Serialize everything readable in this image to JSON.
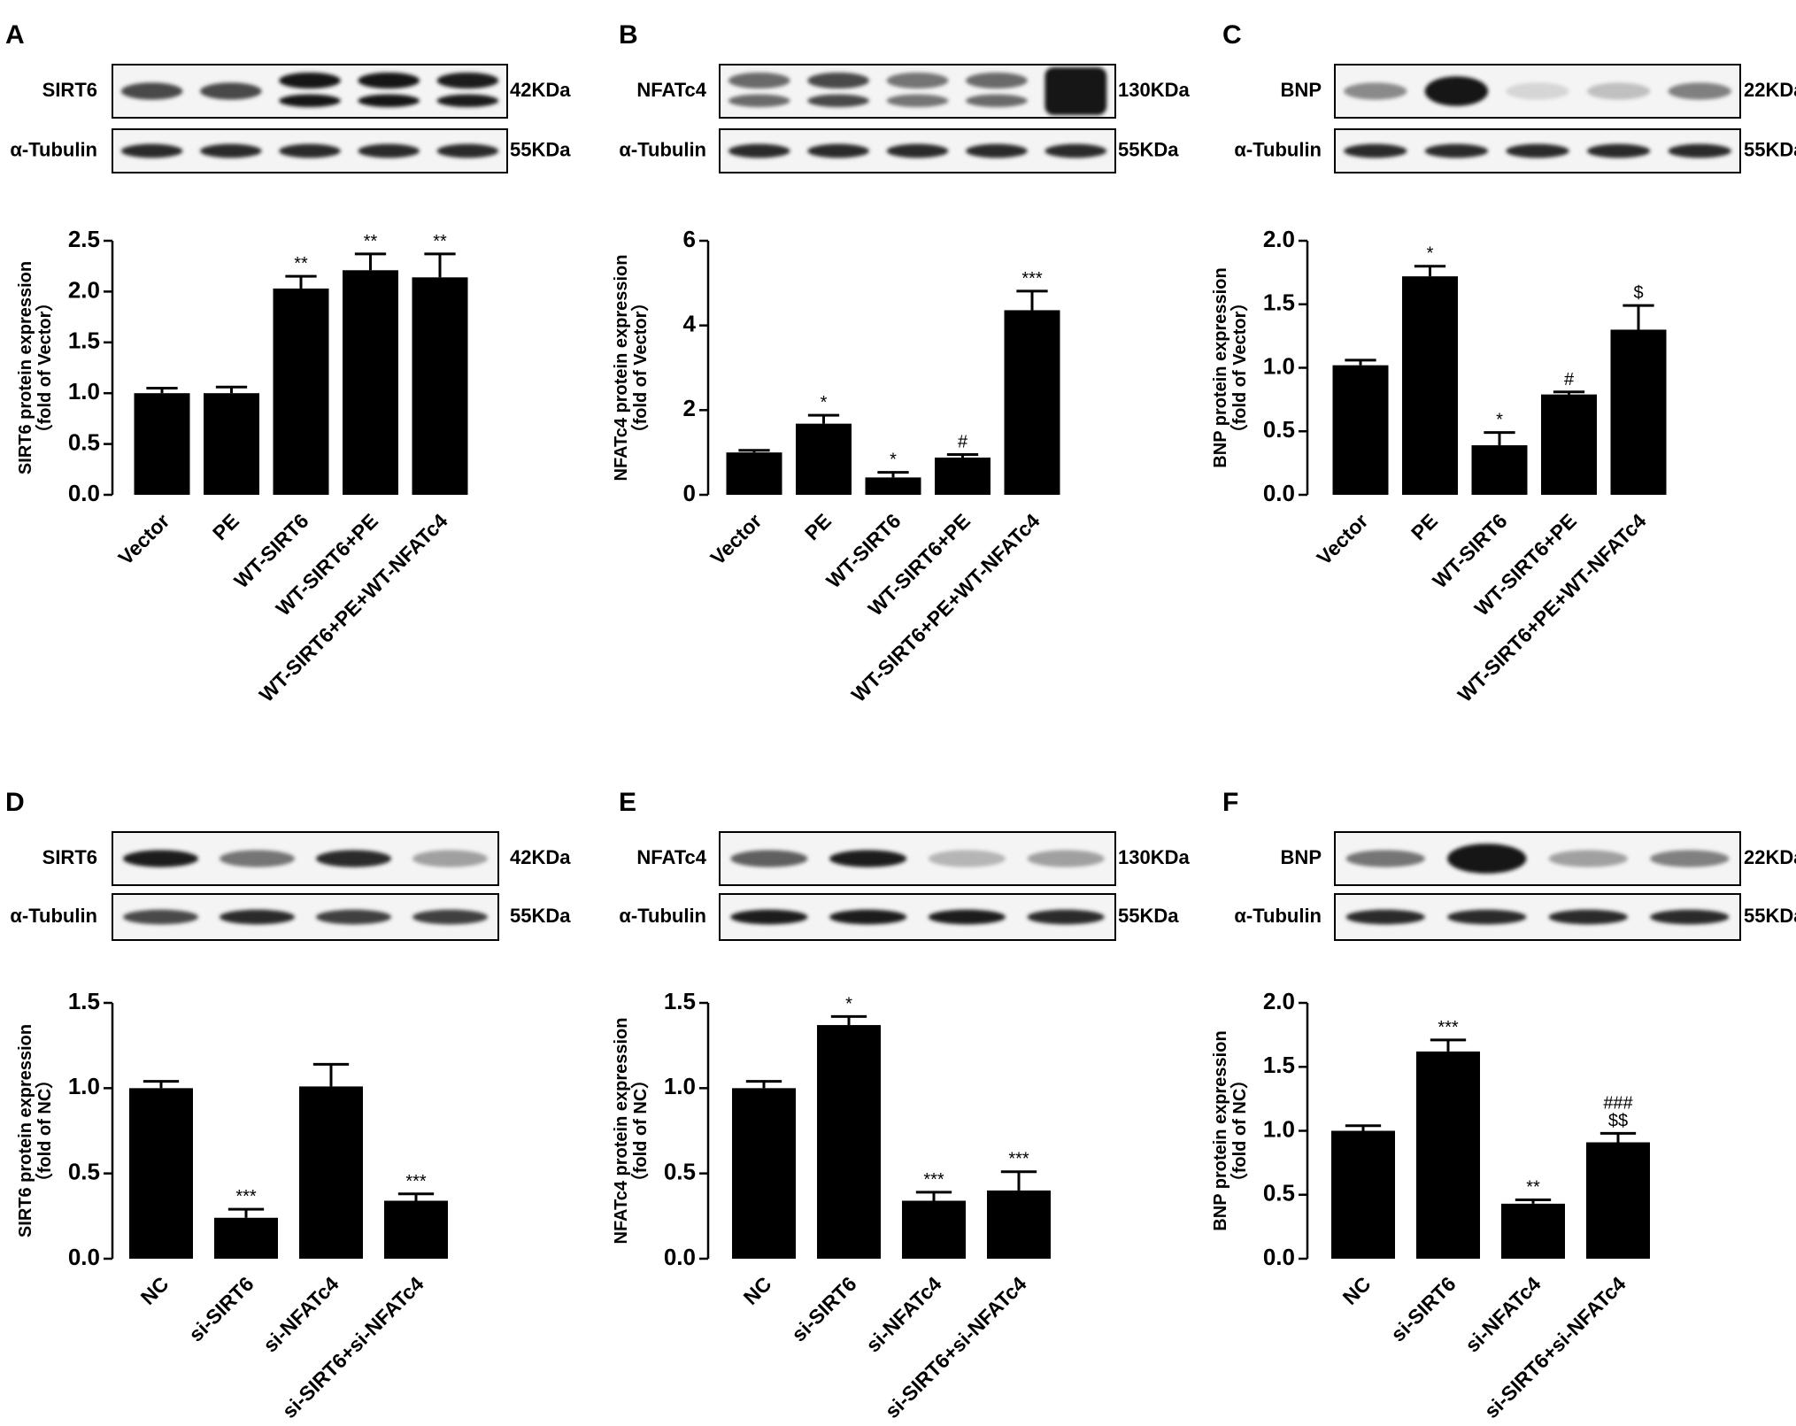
{
  "chart_data": [
    {
      "panel": "A",
      "type": "bar",
      "blot": {
        "target": "SIRT6",
        "target_kda": "42KDa",
        "control": "α-Tubulin",
        "control_kda": "55KDa",
        "target_bands": [
          0.75,
          0.75,
          1.0,
          1.0,
          0.95
        ],
        "target_doublet": [
          false,
          false,
          true,
          true,
          true
        ],
        "control_bands": [
          0.9,
          0.9,
          0.9,
          0.9,
          0.9
        ]
      },
      "categories": [
        "Vector",
        "PE",
        "WT-SIRT6",
        "WT-SIRT6+PE",
        "WT-SIRT6+PE+WT-NFATc4"
      ],
      "values": [
        1.0,
        1.0,
        2.03,
        2.21,
        2.14
      ],
      "errors": [
        0.05,
        0.06,
        0.12,
        0.16,
        0.23
      ],
      "annotations": [
        "",
        "",
        "**",
        "**",
        "**"
      ],
      "ylabel_line1": "SIRT6 protein expression",
      "ylabel_line2": "（fold of Vector）",
      "ylim": [
        0,
        2.5
      ],
      "yticks": [
        "0.0",
        "0.5",
        "1.0",
        "1.5",
        "2.0",
        "2.5"
      ]
    },
    {
      "panel": "B",
      "type": "bar",
      "blot": {
        "target": "NFATc4",
        "target_kda": "130KDa",
        "control": "α-Tubulin",
        "control_kda": "55KDa",
        "target_bands": [
          0.6,
          0.75,
          0.55,
          0.6,
          1.0
        ],
        "target_doublet": [
          true,
          true,
          true,
          true,
          false
        ],
        "control_bands": [
          0.9,
          0.9,
          0.9,
          0.9,
          0.9
        ]
      },
      "categories": [
        "Vector",
        "PE",
        "WT-SIRT6",
        "WT-SIRT6+PE",
        "WT-SIRT6+PE+WT-NFATc4"
      ],
      "values": [
        1.0,
        1.68,
        0.41,
        0.88,
        4.36
      ],
      "errors": [
        0.05,
        0.2,
        0.12,
        0.07,
        0.45
      ],
      "annotations": [
        "",
        "*",
        "*",
        "#",
        "***"
      ],
      "ylabel_line1": "NFATc4 protein expression",
      "ylabel_line2": "（fold of Vector）",
      "ylim": [
        0,
        6
      ],
      "yticks": [
        "0",
        "2",
        "4",
        "6"
      ]
    },
    {
      "panel": "C",
      "type": "bar",
      "blot": {
        "target": "BNP",
        "target_kda": "22KDa",
        "control": "α-Tubulin",
        "control_kda": "55KDa",
        "target_bands": [
          0.45,
          1.0,
          0.1,
          0.2,
          0.5
        ],
        "target_doublet": [
          false,
          false,
          false,
          false,
          false
        ],
        "control_bands": [
          0.9,
          0.9,
          0.9,
          0.9,
          0.9
        ]
      },
      "categories": [
        "Vector",
        "PE",
        "WT-SIRT6",
        "WT-SIRT6+PE",
        "WT-SIRT6+PE+WT-NFATc4"
      ],
      "values": [
        1.02,
        1.72,
        0.39,
        0.79,
        1.3
      ],
      "errors": [
        0.04,
        0.08,
        0.1,
        0.02,
        0.19
      ],
      "annotations": [
        "",
        "*",
        "*",
        "#",
        "$"
      ],
      "ylabel_line1": "BNP protein expression",
      "ylabel_line2": "（fold of Vector）",
      "ylim": [
        0,
        2.0
      ],
      "yticks": [
        "0.0",
        "0.5",
        "1.0",
        "1.5",
        "2.0"
      ]
    },
    {
      "panel": "D",
      "type": "bar",
      "blot": {
        "target": "SIRT6",
        "target_kda": "42KDa",
        "control": "α-Tubulin",
        "control_kda": "55KDa",
        "target_bands": [
          0.95,
          0.55,
          0.9,
          0.35
        ],
        "target_doublet": [
          false,
          false,
          false,
          false
        ],
        "control_bands": [
          0.75,
          0.9,
          0.8,
          0.8
        ]
      },
      "categories": [
        "NC",
        "si-SIRT6",
        "si-NFATc4",
        "si-SIRT6+si-NFATc4"
      ],
      "values": [
        1.0,
        0.24,
        1.01,
        0.34
      ],
      "errors": [
        0.04,
        0.05,
        0.13,
        0.04
      ],
      "annotations": [
        "",
        "***",
        "",
        "***"
      ],
      "ylabel_line1": "SIRT6 protein expression",
      "ylabel_line2": "（fold of NC）",
      "ylim": [
        0,
        1.5
      ],
      "yticks": [
        "0.0",
        "0.5",
        "1.0",
        "1.5"
      ]
    },
    {
      "panel": "E",
      "type": "bar",
      "blot": {
        "target": "NFATc4",
        "target_kda": "130KDa",
        "control": "α-Tubulin",
        "control_kda": "55KDa",
        "target_bands": [
          0.65,
          0.95,
          0.25,
          0.35
        ],
        "target_doublet": [
          false,
          false,
          false,
          false
        ],
        "control_bands": [
          0.95,
          0.95,
          0.95,
          0.9
        ]
      },
      "categories": [
        "NC",
        "si-SIRT6",
        "si-NFATc4",
        "si-SIRT6+si-NFATc4"
      ],
      "values": [
        1.0,
        1.37,
        0.34,
        0.4
      ],
      "errors": [
        0.04,
        0.05,
        0.05,
        0.11
      ],
      "annotations": [
        "",
        "*",
        "***",
        "***"
      ],
      "ylabel_line1": "NFATc4 protein expression",
      "ylabel_line2": "（fold of NC）",
      "ylim": [
        0,
        1.5
      ],
      "yticks": [
        "0.0",
        "0.5",
        "1.0",
        "1.5"
      ]
    },
    {
      "panel": "F",
      "type": "bar",
      "blot": {
        "target": "BNP",
        "target_kda": "22KDa",
        "control": "α-Tubulin",
        "control_kda": "55KDa",
        "target_bands": [
          0.55,
          1.0,
          0.35,
          0.5
        ],
        "target_doublet": [
          false,
          false,
          false,
          false
        ],
        "control_bands": [
          0.9,
          0.9,
          0.9,
          0.9
        ]
      },
      "categories": [
        "NC",
        "si-SIRT6",
        "si-NFATc4",
        "si-SIRT6+si-NFATc4"
      ],
      "values": [
        1.0,
        1.62,
        0.43,
        0.91
      ],
      "errors": [
        0.04,
        0.09,
        0.03,
        0.07
      ],
      "annotations": [
        "",
        "***",
        "**",
        "###\n$$"
      ],
      "ylabel_line1": "BNP protein expression",
      "ylabel_line2": "（fold of NC）",
      "ylim": [
        0,
        2.0
      ],
      "yticks": [
        "0.0",
        "0.5",
        "1.0",
        "1.5",
        "2.0"
      ]
    }
  ]
}
